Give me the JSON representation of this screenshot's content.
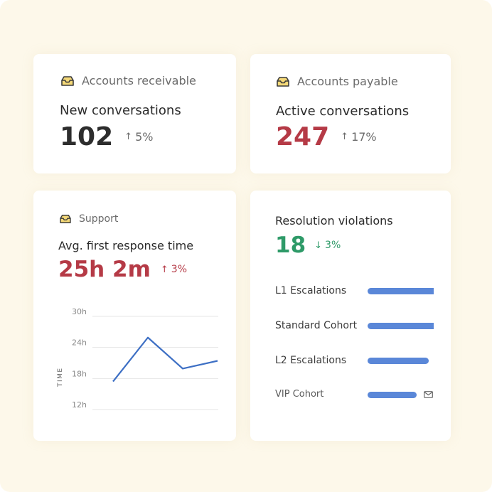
{
  "colors": {
    "page_bg": "#fdf8ea",
    "neutral_value": "#2d2d2d",
    "negative_value": "#b53a46",
    "positive_value": "#2e9a68",
    "chart_line": "#3d6fc4",
    "bar": "#5a87d8",
    "inbox_icon_fill": "#f5d978"
  },
  "cards": [
    {
      "source_label": "Accounts receivable",
      "source_icon": "inbox-icon",
      "title": "New conversations",
      "value": "102",
      "trend": {
        "direction": "up",
        "arrow": "↑",
        "text": "5%"
      }
    },
    {
      "source_label": "Accounts payable",
      "source_icon": "inbox-icon",
      "title": "Active conversations",
      "value": "247",
      "trend": {
        "direction": "up",
        "arrow": "↑",
        "text": "17%"
      }
    },
    {
      "source_label": "Support",
      "source_icon": "inbox-icon",
      "title": "Avg. first response time",
      "value": "25h 2m",
      "trend": {
        "direction": "up",
        "arrow": "↑",
        "text": "3%"
      }
    }
  ],
  "violations": {
    "title": "Resolution violations",
    "value": "18",
    "trend": {
      "direction": "down",
      "arrow": "↓",
      "text": "3%"
    },
    "rows": [
      {
        "label": "L1 Escalations",
        "fraction": 1.0,
        "icon": ""
      },
      {
        "label": "Standard Cohort",
        "fraction": 1.0,
        "icon": ""
      },
      {
        "label": "L2 Escalations",
        "fraction": 0.92,
        "icon": ""
      },
      {
        "label": "VIP Cohort",
        "fraction": 0.74,
        "icon": "mail-icon"
      }
    ]
  },
  "chart_data": {
    "type": "line",
    "ylabel": "TIME",
    "xlabel": "",
    "y_ticks": [
      "30h",
      "24h",
      "18h",
      "12h"
    ],
    "ylim": [
      12,
      30
    ],
    "grid": true,
    "series": [
      {
        "values": [
          17,
          25.5,
          19.5,
          21
        ]
      }
    ]
  }
}
